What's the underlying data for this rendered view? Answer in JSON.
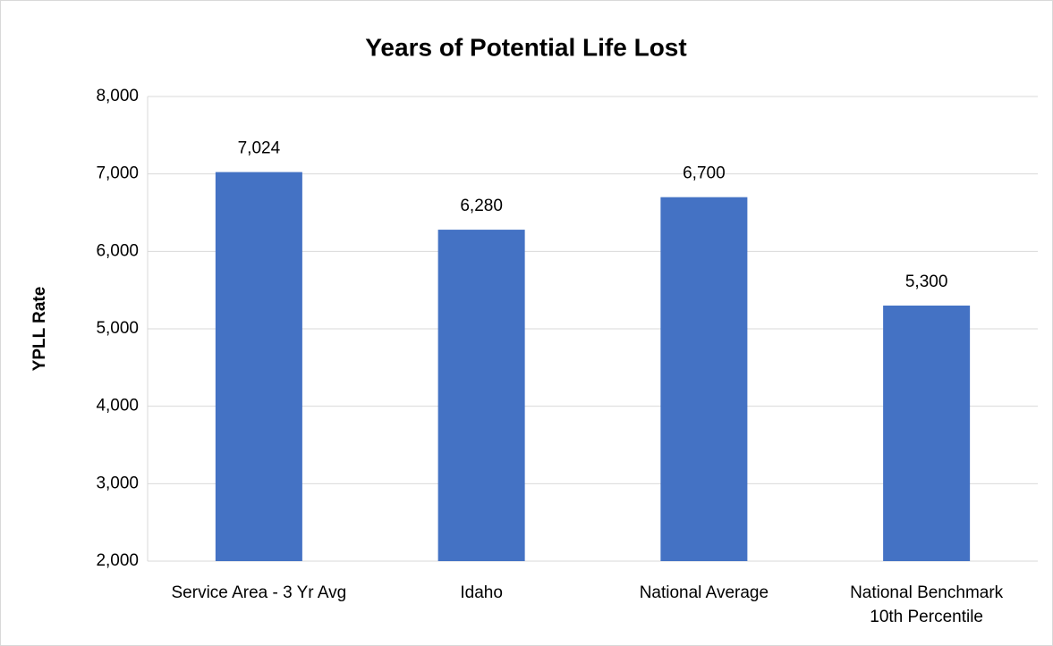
{
  "chart_data": {
    "type": "bar",
    "title": "Years of Potential Life Lost",
    "y_label": "YPLL Rate",
    "categories": [
      "Service Area - 3 Yr Avg",
      "Idaho",
      "National Average",
      "National Benchmark\n10th Percentile"
    ],
    "values": [
      7024,
      6280,
      6700,
      5300
    ],
    "value_labels": [
      "7,024",
      "6,280",
      "6,700",
      "5,300"
    ],
    "color": "#4472c4",
    "ylim": [
      2000,
      8000
    ],
    "yticks": [
      {
        "value": 2000,
        "label": "2,000"
      },
      {
        "value": 3000,
        "label": "3,000"
      },
      {
        "value": 4000,
        "label": "4,000"
      },
      {
        "value": 5000,
        "label": "5,000"
      },
      {
        "value": 6000,
        "label": "6,000"
      },
      {
        "value": 7000,
        "label": "7,000"
      },
      {
        "value": 8000,
        "label": "8,000"
      }
    ],
    "grid": true
  }
}
